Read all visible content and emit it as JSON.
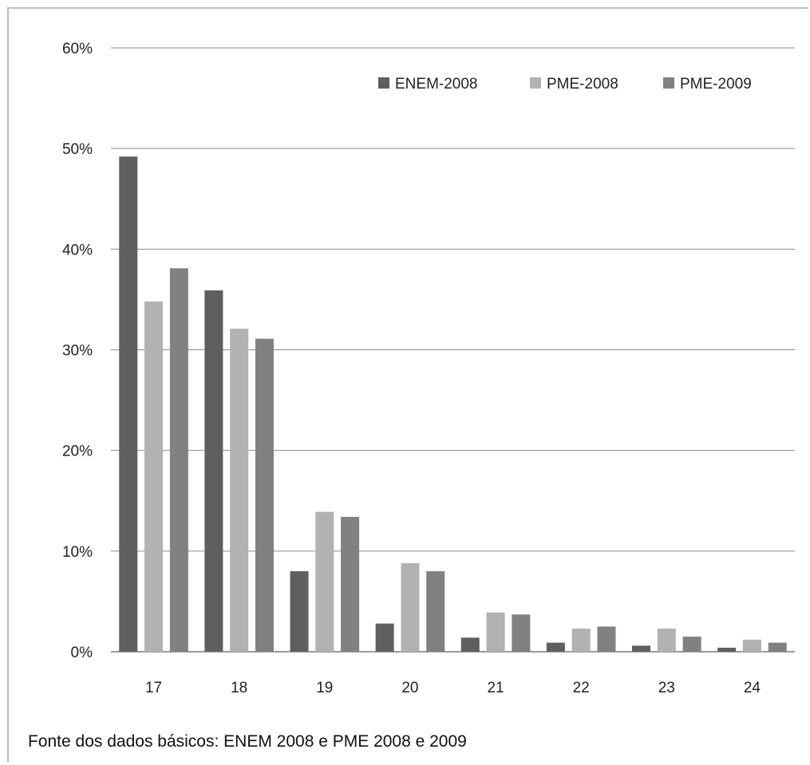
{
  "chart_data": {
    "type": "bar",
    "categories": [
      "17",
      "18",
      "19",
      "20",
      "21",
      "22",
      "23",
      "24"
    ],
    "series": [
      {
        "name": "ENEM-2008",
        "values": [
          49.2,
          35.9,
          8.0,
          2.8,
          1.4,
          0.9,
          0.6,
          0.4
        ]
      },
      {
        "name": "PME-2008",
        "values": [
          34.8,
          32.1,
          13.9,
          8.8,
          3.9,
          2.3,
          2.3,
          1.2
        ]
      },
      {
        "name": "PME-2009",
        "values": [
          38.1,
          31.1,
          13.4,
          8.0,
          3.7,
          2.5,
          1.5,
          0.9
        ]
      }
    ],
    "ylim": [
      0,
      60
    ],
    "yticks": [
      "0%",
      "10%",
      "20%",
      "30%",
      "40%",
      "50%",
      "60%"
    ],
    "grid": true,
    "legend_position": "top-right",
    "colors": [
      "#5f5f5f",
      "#b2b2b2",
      "#818181"
    ]
  },
  "source_note": "Fonte dos dados básicos: ENEM 2008  e PME 2008  e 2009"
}
